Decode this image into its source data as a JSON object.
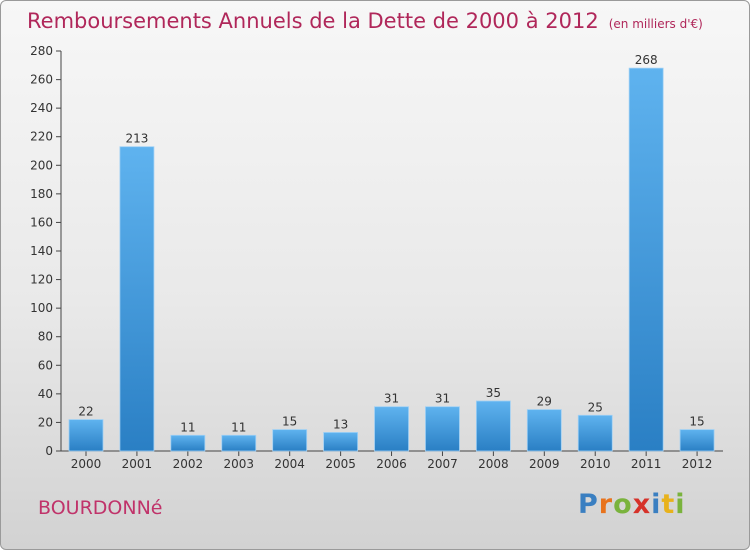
{
  "title": "Remboursements Annuels de la Dette de 2000 à 2012",
  "subtitle": "(en milliers d'€)",
  "commune": "BOURDONNé",
  "logo": {
    "letters": [
      "P",
      "r",
      "o",
      "x",
      "i",
      "t",
      "i"
    ],
    "colors": [
      "#3a7fc1",
      "#e8731c",
      "#7ab33d",
      "#d6322a",
      "#3a7fc1",
      "#e8b21c",
      "#7ab33d"
    ]
  },
  "colors": {
    "bar": "#3f9be0",
    "bar_light": "#6cb8ee",
    "title": "#b0275a"
  },
  "chart_data": {
    "type": "bar",
    "title": "Remboursements Annuels de la Dette de 2000 à 2012",
    "subtitle": "(en milliers d'€)",
    "xlabel": "",
    "ylabel": "",
    "categories": [
      "2000",
      "2001",
      "2002",
      "2003",
      "2004",
      "2005",
      "2006",
      "2007",
      "2008",
      "2009",
      "2010",
      "2011",
      "2012"
    ],
    "values": [
      22,
      213,
      11,
      11,
      15,
      13,
      31,
      31,
      35,
      29,
      25,
      268,
      15
    ],
    "data_labels": [
      "22",
      "213",
      "11",
      "11",
      "15",
      "13",
      "31",
      "31",
      "35",
      "29",
      "25",
      "268",
      "15"
    ],
    "ylim": [
      0,
      280
    ],
    "yticks": [
      0,
      20,
      40,
      60,
      80,
      100,
      120,
      140,
      160,
      180,
      200,
      220,
      240,
      260,
      280
    ],
    "grid": false,
    "legend": "none"
  }
}
